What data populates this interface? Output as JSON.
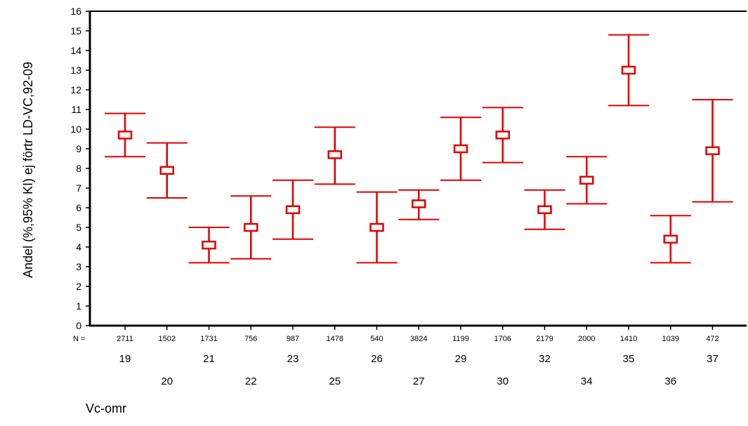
{
  "chart_data": {
    "type": "errorbar",
    "title": "",
    "ylabel": "Andel (%,95% KI) ej förtr LD-VC,92-09",
    "xlabel": "Vc-omr",
    "n_prefix": "N =",
    "ylim": [
      0,
      16
    ],
    "yticks": [
      0,
      1,
      2,
      3,
      4,
      5,
      6,
      7,
      8,
      9,
      10,
      11,
      12,
      13,
      14,
      15,
      16
    ],
    "grid": false,
    "color": "#e00000",
    "categories": [
      "19",
      "20",
      "21",
      "22",
      "23",
      "25",
      "26",
      "27",
      "29",
      "30",
      "32",
      "34",
      "35",
      "36",
      "37"
    ],
    "n": [
      "2711",
      "1502",
      "1731",
      "756",
      "987",
      "1478",
      "540",
      "3824",
      "1199",
      "1706",
      "2179",
      "2000",
      "1410",
      "1039",
      "472"
    ],
    "mean": [
      9.7,
      7.9,
      4.1,
      5.0,
      5.9,
      8.7,
      5.0,
      6.2,
      9.0,
      9.7,
      5.9,
      7.4,
      13.0,
      4.4,
      8.9
    ],
    "lower": [
      8.6,
      6.5,
      3.2,
      3.4,
      4.4,
      7.2,
      3.2,
      5.4,
      7.4,
      8.3,
      4.9,
      6.2,
      11.2,
      3.2,
      6.3
    ],
    "upper": [
      10.8,
      9.3,
      5.0,
      6.6,
      7.4,
      10.1,
      6.8,
      6.9,
      10.6,
      11.1,
      6.9,
      8.6,
      14.8,
      5.6,
      11.5
    ]
  }
}
